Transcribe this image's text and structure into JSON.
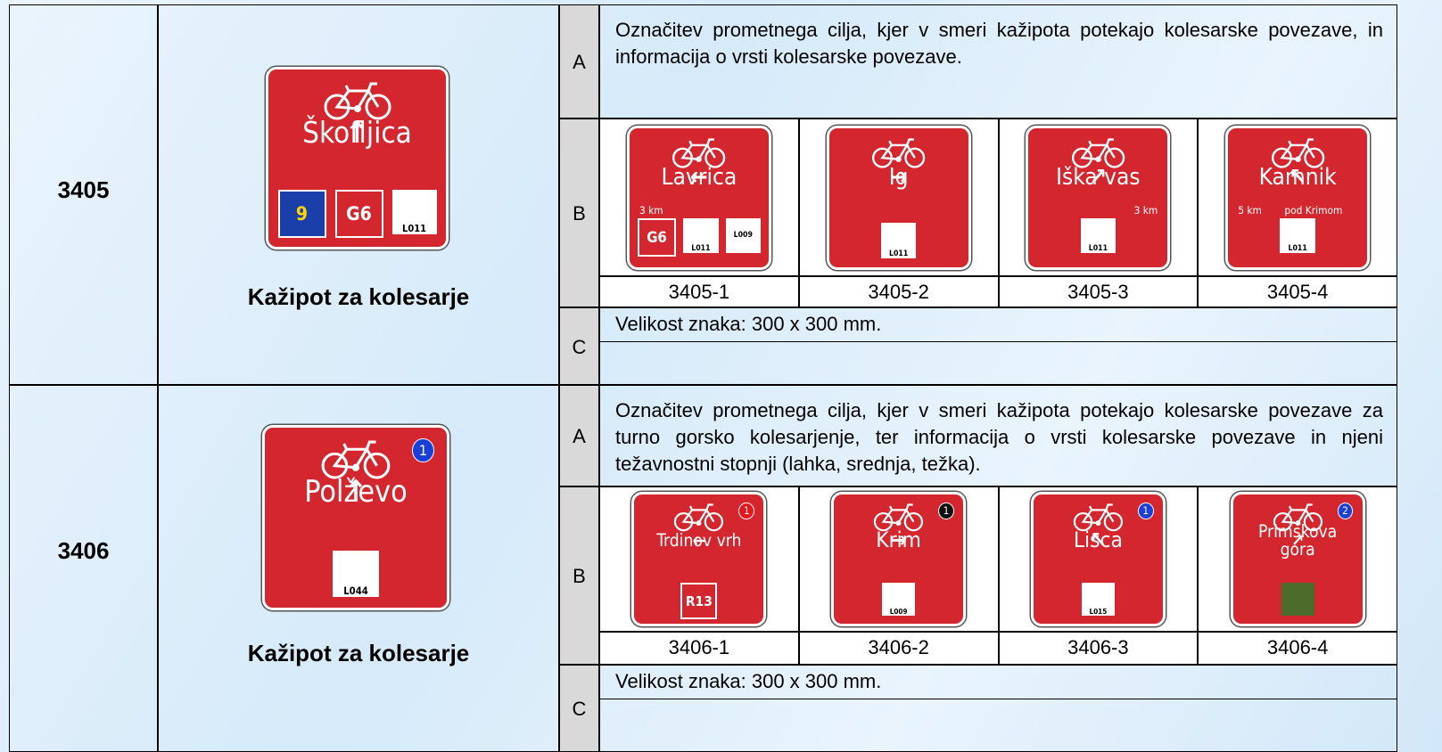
{
  "rows": [
    {
      "code": "3405",
      "name": "Kažipot za kolesarje",
      "main_sign": {
        "arrow": "↑",
        "destination": "Škofljica",
        "labels": [
          {
            "text": "9",
            "style": "eu"
          },
          {
            "text": "G6",
            "style": "route"
          },
          {
            "text": "L011",
            "style": "plate"
          }
        ]
      },
      "sections": [
        {
          "letter": "A",
          "text": "Označitev prometnega cilja, kjer v smeri kažipota potekajo kolesarske povezave, in informacija o vrsti kolesarske povezave."
        },
        {
          "letter": "B",
          "signs": [
            {
              "id": "3405-1",
              "arrow": "←",
              "destination": "Lavrica",
              "distance": "3 km",
              "labels": [
                {
                  "text": "G6",
                  "style": "route"
                },
                {
                  "text": "L011",
                  "style": "plate"
                },
                {
                  "text": "L009",
                  "style": "plain"
                }
              ]
            },
            {
              "id": "3405-2",
              "destination": "Ig",
              "arrow_after": "→",
              "labels": [
                {
                  "text": "L011",
                  "style": "plate"
                }
              ]
            },
            {
              "id": "3405-3",
              "destination": "Iška vas",
              "arrow_after": "↗",
              "distance": "3 km",
              "labels": [
                {
                  "text": "L011",
                  "style": "plate"
                }
              ]
            },
            {
              "id": "3405-4",
              "arrow": "↖",
              "destination": "Kamnik",
              "distance": "5 km",
              "note": "pod Krimom",
              "labels": [
                {
                  "text": "L011",
                  "style": "plate"
                }
              ]
            }
          ]
        },
        {
          "letter": "C",
          "text": "Velikost znaka: 300 x 300 mm."
        }
      ]
    },
    {
      "code": "3406",
      "name": "Kažipot za kolesarje",
      "main_sign": {
        "arrow": "↑",
        "destination": "Polževo",
        "badge": "1",
        "badge_color": "#1a3fd6",
        "labels": [
          {
            "text": "L044",
            "style": "plate"
          }
        ]
      },
      "sections": [
        {
          "letter": "A",
          "text": "Označitev prometnega cilja, kjer v smeri kažipota potekajo kolesarske povezave za turno gorsko kolesarjenje, ter informacija o vrsti kolesarske povezave in njeni težavnostni stopnji (lahka, srednja, težka)."
        },
        {
          "letter": "B",
          "signs": [
            {
              "id": "3406-1",
              "arrow": "←",
              "destination": "Trdinov vrh",
              "badge": "1",
              "badge_color": "#e8141e",
              "labels": [
                {
                  "text": "R13",
                  "style": "route"
                }
              ]
            },
            {
              "id": "3406-2",
              "destination": "Krim",
              "arrow_after": "→",
              "badge": "1",
              "badge_color": "#111111",
              "labels": [
                {
                  "text": "L009",
                  "style": "plate"
                }
              ]
            },
            {
              "id": "3406-3",
              "arrow": "↖",
              "destination": "Lisca",
              "badge": "1",
              "badge_color": "#1a3fd6",
              "labels": [
                {
                  "text": "L015",
                  "style": "plate"
                }
              ]
            },
            {
              "id": "3406-4",
              "destination": "Primskova gora",
              "arrow_after": "↗",
              "badge": "2",
              "badge_color": "#1a3fd6",
              "labels": [
                {
                  "text": "",
                  "style": "photo"
                }
              ]
            }
          ]
        },
        {
          "letter": "C",
          "text": "Velikost znaka: 300 x 300 mm."
        }
      ]
    }
  ]
}
